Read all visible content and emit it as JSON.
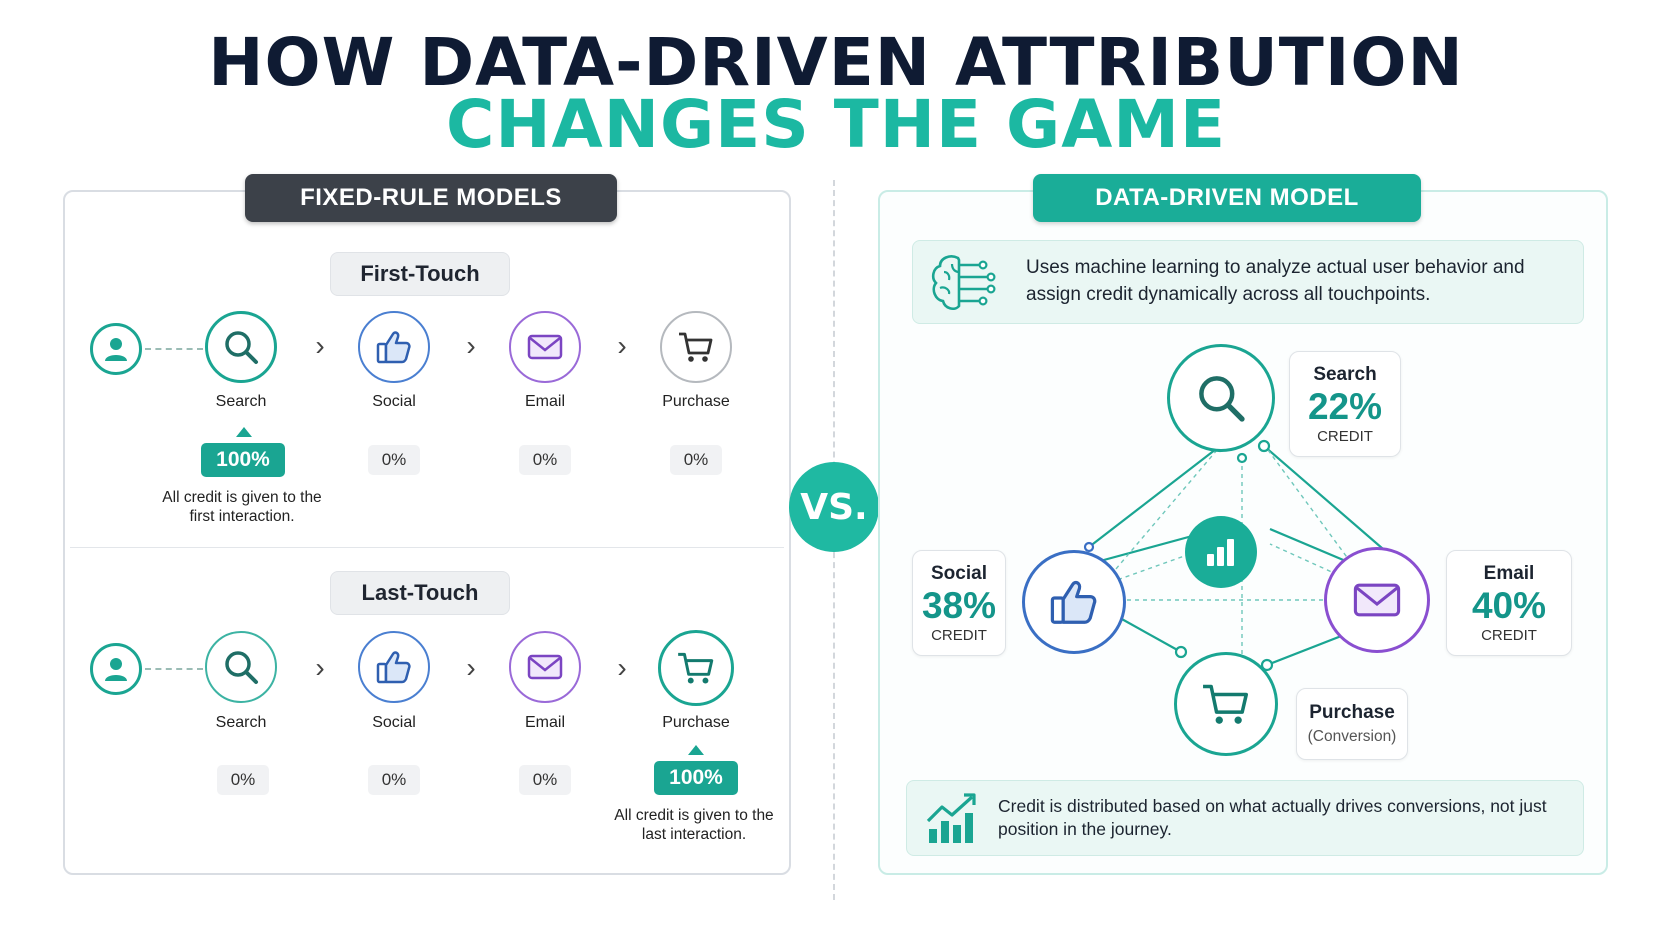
{
  "title": {
    "line1": "HOW DATA-DRIVEN ATTRIBUTION",
    "line2": "CHANGES THE GAME"
  },
  "colors": {
    "teal": "#1aa592",
    "dark": "#3c4149",
    "navy": "#0f1b33",
    "blue": "#3a6fc4",
    "purple": "#8a4fd0",
    "gray": "#8a8f96"
  },
  "fixed": {
    "header": "FIXED-RULE MODELS",
    "first_touch": {
      "label": "First-Touch",
      "steps": [
        {
          "name": "Search",
          "icon": "search-icon",
          "pct": "100%"
        },
        {
          "name": "Social",
          "icon": "thumbs-up-icon",
          "pct": "0%"
        },
        {
          "name": "Email",
          "icon": "envelope-icon",
          "pct": "0%"
        },
        {
          "name": "Purchase",
          "icon": "cart-icon",
          "pct": "0%"
        }
      ],
      "note": "All credit is given to the first interaction."
    },
    "last_touch": {
      "label": "Last-Touch",
      "steps": [
        {
          "name": "Search",
          "icon": "search-icon",
          "pct": "0%"
        },
        {
          "name": "Social",
          "icon": "thumbs-up-icon",
          "pct": "0%"
        },
        {
          "name": "Email",
          "icon": "envelope-icon",
          "pct": "0%"
        },
        {
          "name": "Purchase",
          "icon": "cart-icon",
          "pct": "100%"
        }
      ],
      "note": "All credit is given to the last interaction."
    }
  },
  "vs": "VS.",
  "data_driven": {
    "header": "DATA-DRIVEN MODEL",
    "intro": "Uses machine learning to analyze actual user behavior and assign credit dynamically across all touchpoints.",
    "nodes": {
      "search": {
        "name": "Search",
        "pct": "22%",
        "sub": "CREDIT"
      },
      "social": {
        "name": "Social",
        "pct": "38%",
        "sub": "CREDIT"
      },
      "email": {
        "name": "Email",
        "pct": "40%",
        "sub": "CREDIT"
      },
      "purchase": {
        "name": "Purchase",
        "sub": "(Conversion)"
      }
    },
    "footer": "Credit is distributed based on what actually drives conversions, not just position in the journey."
  }
}
